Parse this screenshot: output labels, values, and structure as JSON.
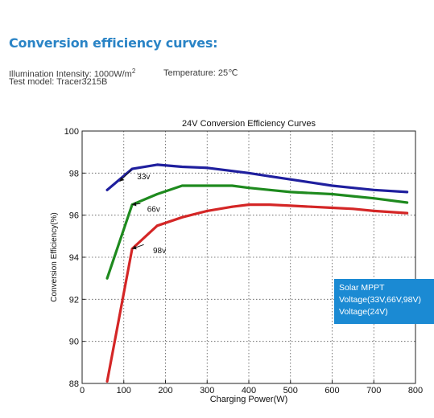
{
  "header": {
    "title": "Conversion efficiency curves:",
    "illumination_prefix": "Illumination Intensity: 1000W/m",
    "illumination_sup": "2",
    "temperature": "Temperature: 25℃",
    "test_model": "Test model: Tracer3215B"
  },
  "info_box": {
    "lines": [
      "Solar MPPT",
      "Voltage(33V,66V,98V)",
      "Voltage(24V)"
    ],
    "color": "#1b8ad3"
  },
  "chart_data": {
    "type": "line",
    "title": "24V Conversion Efficiency Curves",
    "xlabel": "Charging Power(W)",
    "ylabel": "Conversion Efficiency(%)",
    "xlim": [
      0,
      800
    ],
    "ylim": [
      88,
      100
    ],
    "xticks": [
      0,
      100,
      200,
      300,
      400,
      500,
      600,
      700,
      800
    ],
    "yticks": [
      88,
      90,
      92,
      94,
      96,
      98,
      100
    ],
    "grid": true,
    "series": [
      {
        "name": "33v",
        "color": "#1f1f9e",
        "x": [
          60,
          120,
          180,
          240,
          300,
          360,
          400,
          450,
          500,
          550,
          600,
          650,
          700,
          780
        ],
        "y": [
          97.2,
          98.2,
          98.4,
          98.3,
          98.25,
          98.1,
          98.0,
          97.85,
          97.7,
          97.55,
          97.4,
          97.3,
          97.2,
          97.1
        ]
      },
      {
        "name": "66v",
        "color": "#1e8a1e",
        "x": [
          60,
          120,
          180,
          240,
          300,
          360,
          400,
          450,
          500,
          550,
          600,
          650,
          700,
          780
        ],
        "y": [
          93.0,
          96.5,
          97.0,
          97.4,
          97.4,
          97.4,
          97.3,
          97.2,
          97.1,
          97.05,
          97.0,
          96.9,
          96.8,
          96.6
        ]
      },
      {
        "name": "98v",
        "color": "#d42626",
        "x": [
          60,
          120,
          180,
          240,
          300,
          360,
          400,
          450,
          500,
          550,
          600,
          650,
          700,
          780
        ],
        "y": [
          88.1,
          94.4,
          95.5,
          95.9,
          96.2,
          96.4,
          96.5,
          96.5,
          96.45,
          96.4,
          96.35,
          96.3,
          96.2,
          96.1
        ]
      }
    ],
    "annotations": [
      {
        "text": "33v",
        "series": "33v"
      },
      {
        "text": "66v",
        "series": "66v"
      },
      {
        "text": "98v",
        "series": "98v"
      }
    ]
  }
}
